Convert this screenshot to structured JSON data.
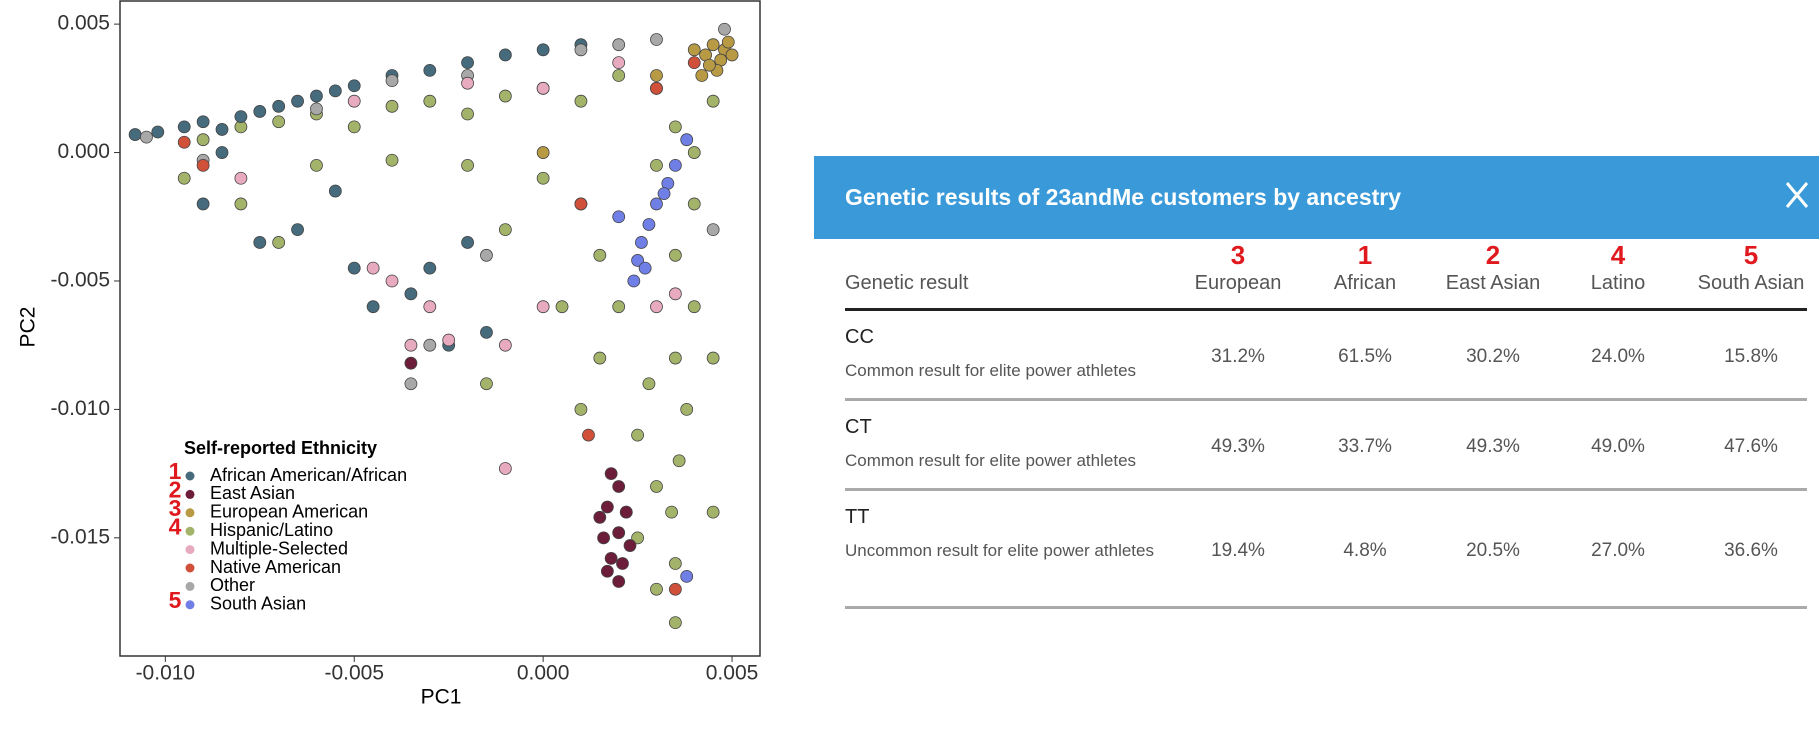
{
  "chart_data": {
    "type": "scatter",
    "xlabel": "PC1",
    "ylabel": "PC2",
    "legend_title": "Self-reported Ethnicity",
    "legend": "lower-left",
    "xlim": [
      -0.0112,
      0.00574
    ],
    "ylim": [
      -0.0196,
      0.0059
    ],
    "xticks": [
      {
        "value": -0.01,
        "label": "-0.010"
      },
      -0.005,
      {
        "value": 0,
        "label": "0.000"
      },
      0.005
    ],
    "yticks": [
      0.005,
      {
        "value": 0,
        "label": "0.000"
      },
      -0.005,
      {
        "value": -0.01,
        "label": "-0.010"
      },
      -0.015
    ],
    "series": [
      {
        "name": "African American/African",
        "annotation": "1",
        "color": "#466b7d",
        "x": [
          -0.0108,
          -0.0102,
          -0.0095,
          -0.009,
          -0.0085,
          -0.008,
          -0.0075,
          -0.007,
          -0.0065,
          -0.006,
          -0.0055,
          -0.005,
          -0.004,
          -0.003,
          -0.002,
          -0.001,
          0.0,
          0.001,
          -0.009,
          -0.0075,
          -0.0065,
          -0.005,
          -0.0045,
          -0.0035,
          -0.003,
          -0.0025,
          -0.0015,
          -0.002,
          -0.0085,
          -0.0055
        ],
        "y": [
          0.0007,
          0.0008,
          0.001,
          0.0012,
          0.0009,
          0.0014,
          0.0016,
          0.0018,
          0.002,
          0.0022,
          0.0024,
          0.0026,
          0.003,
          0.0032,
          0.0035,
          0.0038,
          0.004,
          0.0042,
          -0.002,
          -0.0035,
          -0.003,
          -0.0045,
          -0.006,
          -0.0055,
          -0.0045,
          -0.0075,
          -0.007,
          -0.0035,
          0.0,
          -0.0015
        ]
      },
      {
        "name": "East Asian",
        "annotation": "2",
        "color": "#6b1d3a",
        "x": [
          0.0018,
          0.002,
          0.0017,
          0.0022,
          0.0015,
          0.002,
          0.0016,
          0.0023,
          0.0018,
          0.0021,
          0.0017,
          0.002,
          -0.0035
        ],
        "y": [
          -0.0125,
          -0.013,
          -0.0138,
          -0.014,
          -0.0142,
          -0.0148,
          -0.015,
          -0.0153,
          -0.0158,
          -0.016,
          -0.0163,
          -0.0167,
          -0.0082
        ]
      },
      {
        "name": "European American",
        "annotation": "3",
        "color": "#b89a45",
        "x": [
          0.0045,
          0.0048,
          0.005,
          0.0047,
          0.0043,
          0.004,
          0.0049,
          0.0046,
          0.0044,
          0.0042,
          0.003,
          0.0
        ],
        "y": [
          0.0042,
          0.004,
          0.0038,
          0.0036,
          0.0038,
          0.004,
          0.0043,
          0.0032,
          0.0034,
          0.003,
          0.003,
          0.0
        ]
      },
      {
        "name": "Hispanic/Latino",
        "annotation": "4",
        "color": "#a3b36a",
        "x": [
          -0.009,
          -0.008,
          -0.007,
          -0.006,
          -0.005,
          -0.004,
          -0.003,
          -0.002,
          -0.001,
          0,
          0.001,
          0.002,
          0.003,
          0.0035,
          0.004,
          0.004,
          0.0035,
          0.004,
          0.0035,
          0.0038,
          0.0036,
          0.0034,
          0.0035,
          0.0035,
          0.003,
          0.0028,
          0.002,
          0.0015,
          0.001,
          0,
          -0.002,
          -0.004,
          -0.008,
          -0.0095,
          -0.007,
          0.0025,
          0.0015,
          0.0005,
          -0.001,
          0.0045,
          -0.0015,
          0.0025,
          0.003,
          -0.006,
          0.003,
          0.0045,
          0.0045,
          0.001
        ],
        "y": [
          0.0005,
          0.001,
          0.0012,
          0.0015,
          0.001,
          0.0018,
          0.002,
          0.0015,
          0.0022,
          0.0025,
          0.002,
          0.003,
          0.0025,
          0.001,
          0.0,
          -0.002,
          -0.004,
          -0.006,
          -0.008,
          -0.01,
          -0.012,
          -0.014,
          -0.016,
          -0.0183,
          -0.013,
          -0.009,
          -0.006,
          -0.004,
          -0.002,
          -0.001,
          -0.0005,
          -0.0003,
          -0.002,
          -0.001,
          -0.0035,
          -0.011,
          -0.008,
          -0.006,
          -0.003,
          0.002,
          -0.009,
          -0.015,
          -0.017,
          -0.0005,
          -0.0005,
          -0.008,
          -0.014,
          -0.01
        ]
      },
      {
        "name": "Multiple-Selected",
        "color": "#e8aabf",
        "x": [
          -0.008,
          -0.005,
          -0.003,
          -0.0035,
          -0.0025,
          -0.001,
          -0.004,
          -0.002,
          0.0,
          0.002,
          0.003,
          0.0035,
          -0.0045,
          -0.001,
          0.0
        ],
        "y": [
          -0.001,
          0.002,
          -0.006,
          -0.0075,
          -0.0073,
          -0.0075,
          -0.005,
          0.0027,
          0.0025,
          0.0035,
          -0.006,
          -0.0055,
          -0.0045,
          -0.0123,
          -0.006
        ]
      },
      {
        "name": "Native American",
        "color": "#d0503a",
        "x": [
          -0.0095,
          -0.009,
          0.001,
          0.0012,
          0.003,
          0.0035,
          0.004
        ],
        "y": [
          0.0004,
          -0.0005,
          -0.002,
          -0.011,
          0.0025,
          -0.017,
          0.0035
        ]
      },
      {
        "name": "Other",
        "color": "#a8a8a8",
        "x": [
          -0.0105,
          -0.006,
          -0.004,
          -0.002,
          0.001,
          0.002,
          0.003,
          0.0048,
          -0.003,
          -0.0035,
          -0.0015,
          0.0045,
          -0.009
        ],
        "y": [
          0.0006,
          0.0017,
          0.0028,
          0.003,
          0.004,
          0.0042,
          0.0044,
          0.0048,
          -0.0075,
          -0.009,
          -0.004,
          -0.003,
          -0.0003
        ]
      },
      {
        "name": "South Asian",
        "annotation": "5",
        "color": "#6f7fe6",
        "x": [
          0.0038,
          0.0035,
          0.0033,
          0.003,
          0.0028,
          0.0026,
          0.0025,
          0.0024,
          0.0032,
          0.0027,
          0.002,
          0.0022,
          0.0038
        ],
        "y": [
          0.0005,
          -0.0005,
          -0.0012,
          -0.002,
          -0.0028,
          -0.0035,
          -0.0042,
          -0.005,
          -0.0016,
          -0.0045,
          -0.0025,
          -0.014,
          -0.0165
        ]
      }
    ]
  },
  "table": {
    "title": "Genetic results of 23andMe customers by ancestry",
    "header": "Genetic result",
    "columns": [
      {
        "label": "European",
        "annotation": "3"
      },
      {
        "label": "African",
        "annotation": "1"
      },
      {
        "label": "East Asian",
        "annotation": "2"
      },
      {
        "label": "Latino",
        "annotation": "4"
      },
      {
        "label": "South Asian",
        "annotation": "5"
      }
    ],
    "rows": [
      {
        "result": "CC",
        "note": "Common result for elite power athletes",
        "values": [
          "31.2%",
          "61.5%",
          "30.2%",
          "24.0%",
          "15.8%"
        ]
      },
      {
        "result": "CT",
        "note": "Common result for elite power athletes",
        "values": [
          "49.3%",
          "33.7%",
          "49.3%",
          "49.0%",
          "47.6%"
        ]
      },
      {
        "result": "TT",
        "note": "Uncommon result for elite power athletes",
        "values": [
          "19.4%",
          "4.8%",
          "20.5%",
          "27.0%",
          "36.6%"
        ]
      }
    ]
  }
}
